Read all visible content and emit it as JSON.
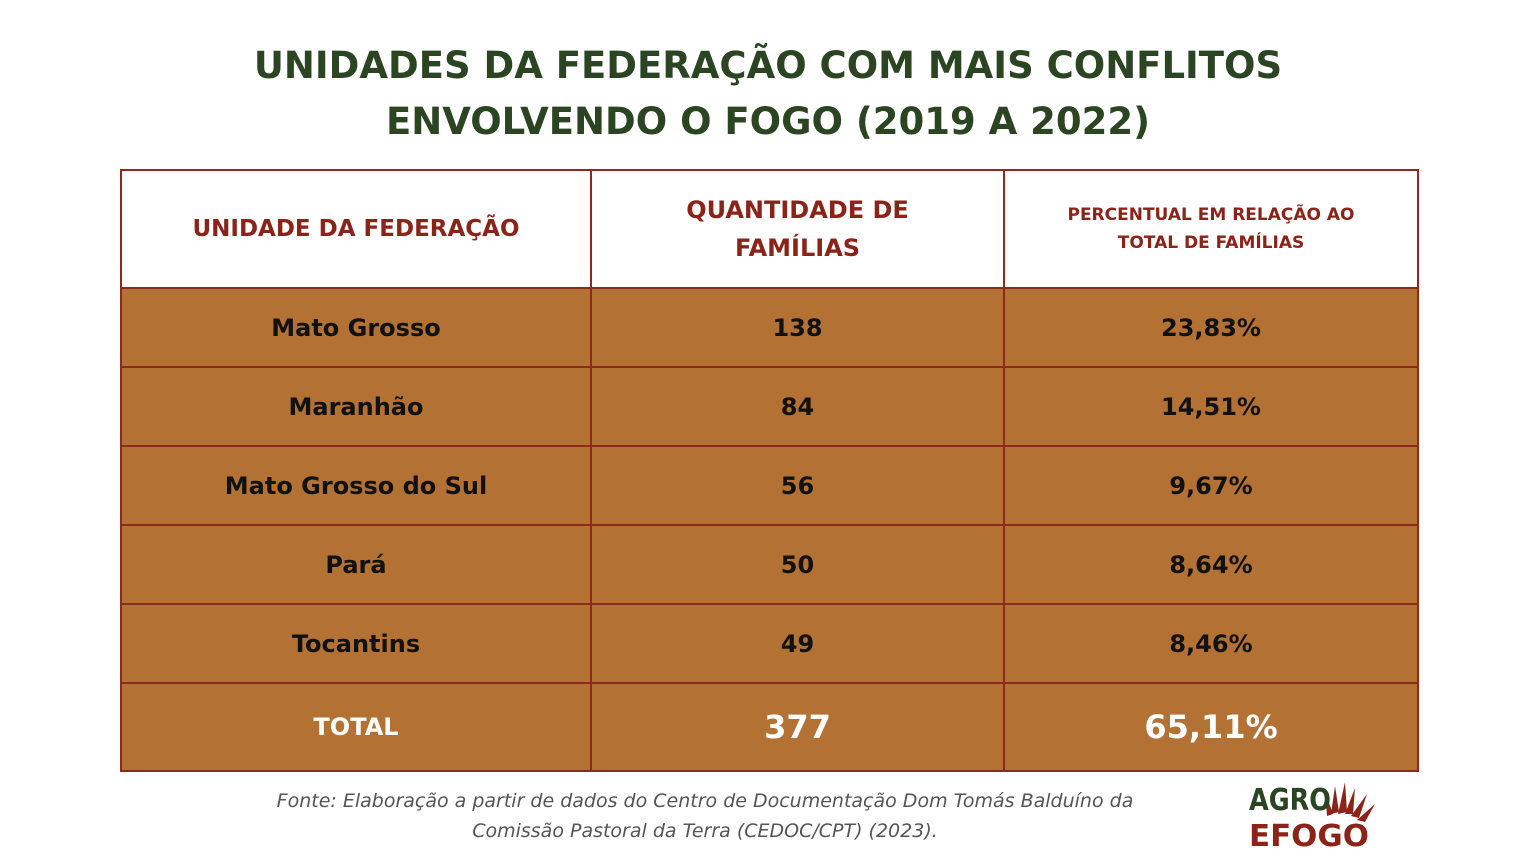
{
  "title": {
    "line1": "UNIDADES DA FEDERAÇÃO COM MAIS CONFLITOS",
    "line2": "ENVOLVENDO O FOGO (2019 A 2022)"
  },
  "table": {
    "headers": {
      "uf": "UNIDADE DA FEDERAÇÃO",
      "qty_line1": "QUANTIDADE DE",
      "qty_line2": "FAMÍLIAS",
      "pct_line1": "PERCENTUAL EM RELAÇÃO AO",
      "pct_line2": "TOTAL DE FAMÍLIAS"
    },
    "rows": [
      {
        "uf": "Mato Grosso",
        "qty": "138",
        "pct": "23,83%"
      },
      {
        "uf": "Maranhão",
        "qty": "84",
        "pct": "14,51%"
      },
      {
        "uf": "Mato Grosso do Sul",
        "qty": "56",
        "pct": "9,67%"
      },
      {
        "uf": "Pará",
        "qty": "50",
        "pct": "8,64%"
      },
      {
        "uf": "Tocantins",
        "qty": "49",
        "pct": "8,46%"
      }
    ],
    "total": {
      "label": "TOTAL",
      "qty": "377",
      "pct": "65,11%"
    }
  },
  "source": {
    "line1": "Fonte: Elaboração a partir de dados do Centro de Documentação Dom Tomás Balduíno da",
    "line2": "Comissão Pastoral da Terra (CEDOC/CPT) (2023)."
  },
  "logo": {
    "line1": "AGRO",
    "line2": "EFOGO",
    "color_dark": "#2b4422",
    "color_red": "#8b2318"
  },
  "colors": {
    "title": "#2b4422",
    "header_text": "#8b2318",
    "border": "#8c2a1c",
    "row_fill": "#b37134"
  }
}
